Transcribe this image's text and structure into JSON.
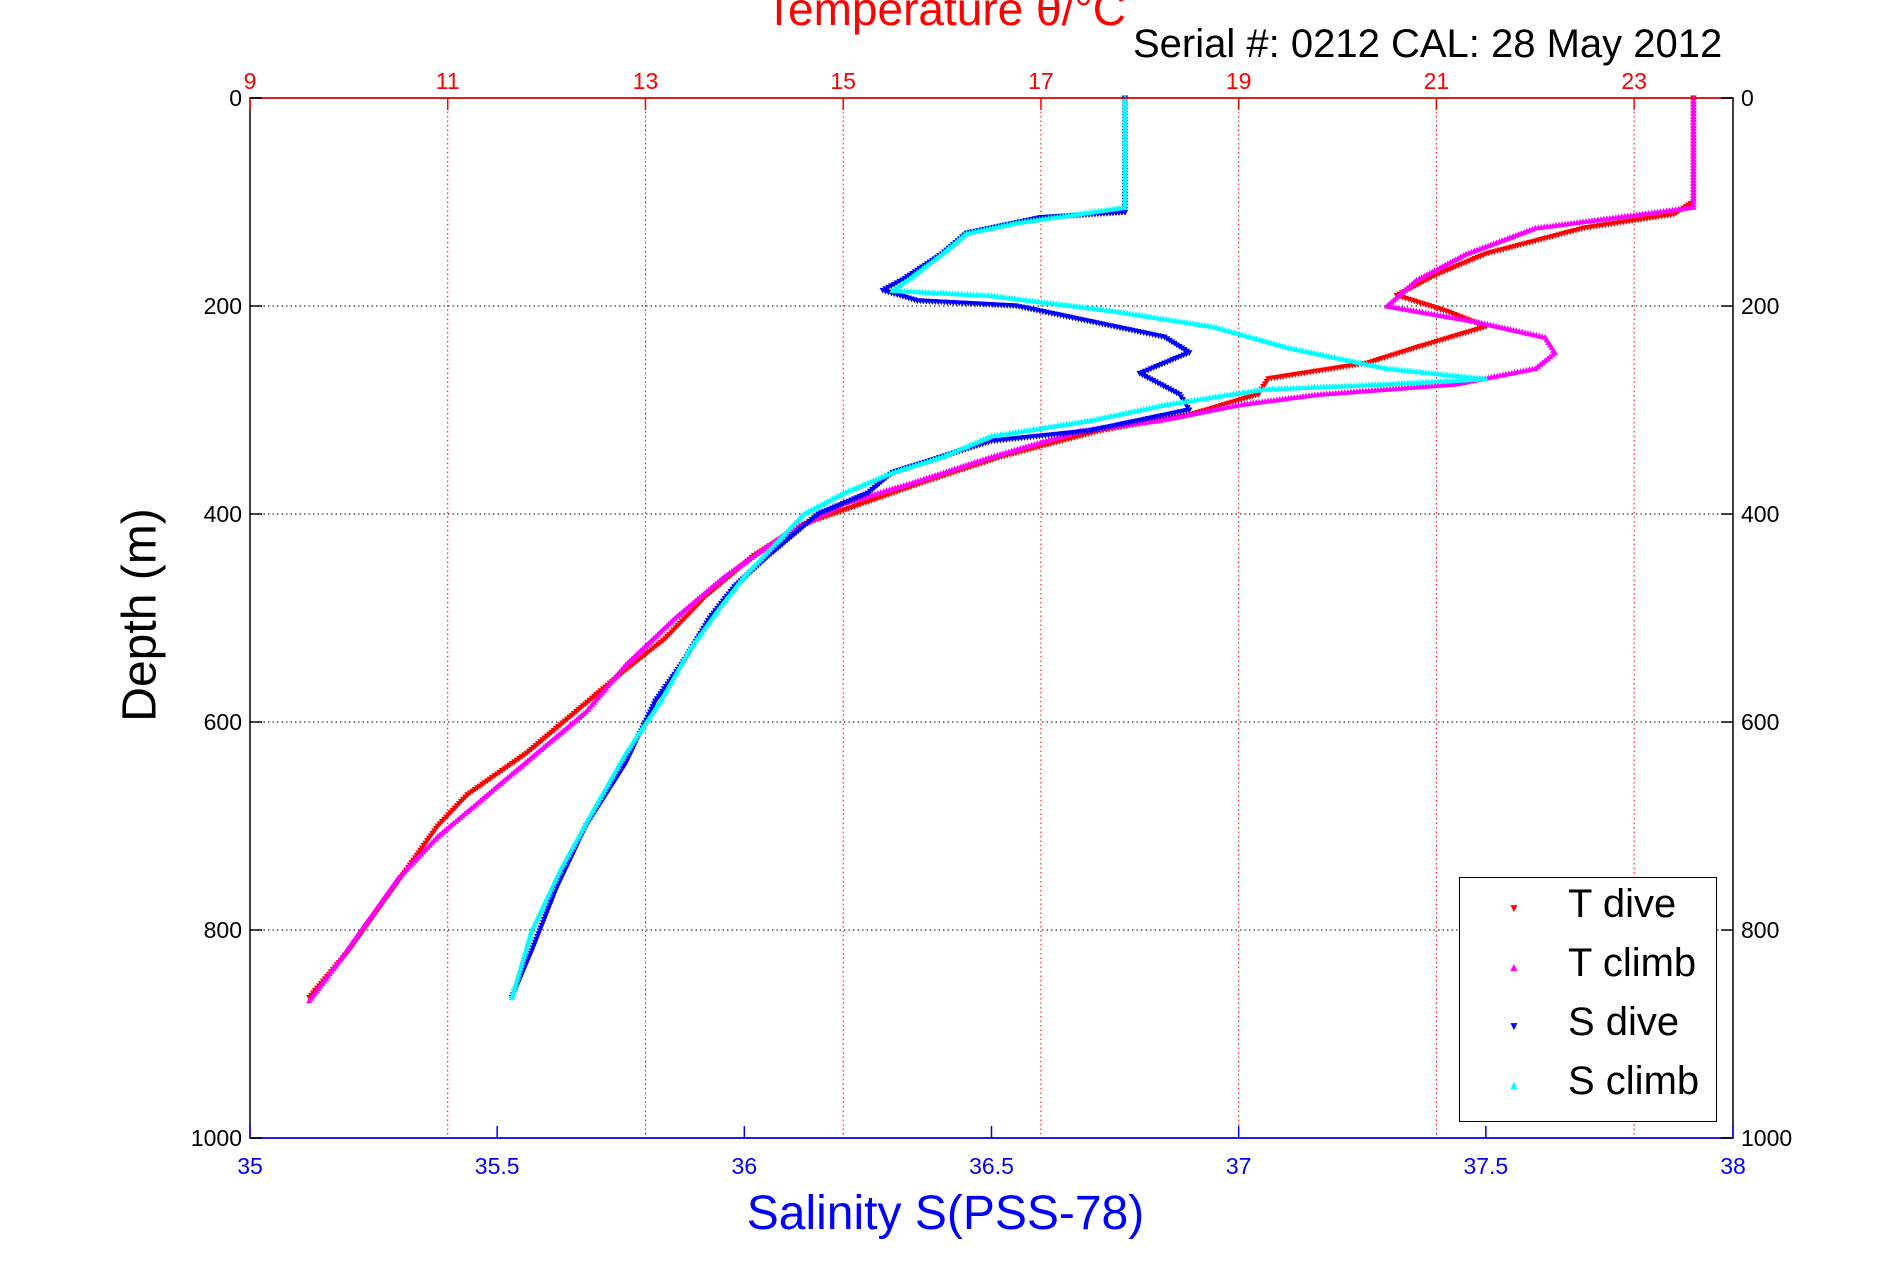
{
  "header": {
    "top_title": "Temperature θ/°C",
    "serial_text": "Serial #: 0212  CAL: 28 May 2012"
  },
  "axes": {
    "ylabel": "Depth (m)",
    "xlabel_bottom": "Salinity S(PSS-78)"
  },
  "legend": {
    "items": [
      {
        "label": "T dive",
        "color": "#ff0000",
        "marker": "▼"
      },
      {
        "label": "T climb",
        "color": "#ff00ff",
        "marker": "▲"
      },
      {
        "label": "S dive",
        "color": "#0000ff",
        "marker": "▼"
      },
      {
        "label": "S climb",
        "color": "#00ffff",
        "marker": "▲"
      }
    ]
  },
  "colors": {
    "temperature_axis": "#ff0000",
    "salinity_axis": "#0000ff",
    "depth_grid": "#000000"
  },
  "chart_data": {
    "type": "scatter",
    "title": "Temperature θ/°C",
    "subtitle": "Serial #: 0212  CAL: 28 May 2012",
    "ylabel": "Depth (m)",
    "y_reversed": true,
    "ylim": [
      0,
      1000
    ],
    "yticks": [
      0,
      200,
      400,
      600,
      800,
      1000
    ],
    "x_bottom": {
      "label": "Salinity S(PSS-78)",
      "lim": [
        35,
        38
      ],
      "ticks": [
        35,
        35.5,
        36,
        36.5,
        37,
        37.5,
        38
      ],
      "tick_labels": [
        "35",
        "35.5",
        "36",
        "36.5",
        "37",
        "37.5",
        "38"
      ]
    },
    "x_top": {
      "label": "Temperature θ/°C",
      "lim": [
        9,
        24
      ],
      "ticks": [
        9,
        11,
        13,
        15,
        17,
        19,
        21,
        23
      ],
      "tick_labels": [
        "9",
        "11",
        "13",
        "15",
        "17",
        "19",
        "21",
        "23"
      ]
    },
    "grid": true,
    "legend_position": "bottom-right",
    "series": [
      {
        "name": "T dive",
        "axis": "temperature",
        "color": "#ff0000",
        "marker": "down-triangle",
        "points": [
          [
            23.6,
            0
          ],
          [
            23.6,
            50
          ],
          [
            23.6,
            100
          ],
          [
            23.4,
            112
          ],
          [
            22.5,
            125
          ],
          [
            21.5,
            150
          ],
          [
            21.0,
            170
          ],
          [
            20.6,
            190
          ],
          [
            21.1,
            205
          ],
          [
            21.5,
            220
          ],
          [
            20.8,
            240
          ],
          [
            20.3,
            255
          ],
          [
            19.3,
            270
          ],
          [
            19.2,
            285
          ],
          [
            18.5,
            305
          ],
          [
            17.6,
            320
          ],
          [
            16.6,
            345
          ],
          [
            15.8,
            370
          ],
          [
            15.2,
            390
          ],
          [
            14.6,
            410
          ],
          [
            14.1,
            440
          ],
          [
            13.6,
            480
          ],
          [
            13.2,
            520
          ],
          [
            12.8,
            550
          ],
          [
            12.3,
            590
          ],
          [
            11.8,
            630
          ],
          [
            11.2,
            670
          ],
          [
            10.9,
            700
          ],
          [
            10.6,
            740
          ],
          [
            10.3,
            780
          ],
          [
            10.0,
            820
          ],
          [
            9.6,
            865
          ]
        ]
      },
      {
        "name": "T climb",
        "axis": "temperature",
        "color": "#ff00ff",
        "marker": "up-triangle",
        "points": [
          [
            23.6,
            0
          ],
          [
            23.6,
            50
          ],
          [
            23.6,
            105
          ],
          [
            22.0,
            125
          ],
          [
            21.3,
            150
          ],
          [
            20.8,
            175
          ],
          [
            20.5,
            200
          ],
          [
            21.4,
            215
          ],
          [
            22.1,
            230
          ],
          [
            22.2,
            245
          ],
          [
            22.0,
            260
          ],
          [
            21.2,
            275
          ],
          [
            19.8,
            285
          ],
          [
            19.0,
            295
          ],
          [
            18.2,
            310
          ],
          [
            17.4,
            320
          ],
          [
            16.5,
            345
          ],
          [
            15.7,
            370
          ],
          [
            15.0,
            390
          ],
          [
            14.4,
            420
          ],
          [
            13.8,
            460
          ],
          [
            13.3,
            500
          ],
          [
            12.8,
            545
          ],
          [
            12.4,
            590
          ],
          [
            11.9,
            630
          ],
          [
            11.4,
            670
          ],
          [
            10.9,
            710
          ],
          [
            10.5,
            750
          ],
          [
            10.2,
            790
          ],
          [
            9.9,
            830
          ],
          [
            9.6,
            868
          ]
        ]
      },
      {
        "name": "S dive",
        "axis": "salinity",
        "color": "#0000ff",
        "marker": "down-triangle",
        "points": [
          [
            36.77,
            0
          ],
          [
            36.77,
            50
          ],
          [
            36.77,
            110
          ],
          [
            36.6,
            115
          ],
          [
            36.45,
            130
          ],
          [
            36.4,
            150
          ],
          [
            36.32,
            175
          ],
          [
            36.28,
            185
          ],
          [
            36.35,
            195
          ],
          [
            36.55,
            200
          ],
          [
            36.7,
            215
          ],
          [
            36.85,
            230
          ],
          [
            36.9,
            245
          ],
          [
            36.8,
            265
          ],
          [
            36.88,
            285
          ],
          [
            36.9,
            300
          ],
          [
            36.7,
            320
          ],
          [
            36.5,
            330
          ],
          [
            36.4,
            345
          ],
          [
            36.3,
            360
          ],
          [
            36.25,
            380
          ],
          [
            36.15,
            400
          ],
          [
            36.1,
            420
          ],
          [
            36.05,
            440
          ],
          [
            35.98,
            470
          ],
          [
            35.93,
            500
          ],
          [
            35.88,
            540
          ],
          [
            35.82,
            580
          ],
          [
            35.76,
            640
          ],
          [
            35.68,
            700
          ],
          [
            35.62,
            760
          ],
          [
            35.57,
            820
          ],
          [
            35.53,
            865
          ]
        ]
      },
      {
        "name": "S climb",
        "axis": "salinity",
        "color": "#00ffff",
        "marker": "up-triangle",
        "points": [
          [
            36.77,
            0
          ],
          [
            36.77,
            50
          ],
          [
            36.77,
            105
          ],
          [
            36.55,
            120
          ],
          [
            36.45,
            130
          ],
          [
            36.4,
            150
          ],
          [
            36.33,
            175
          ],
          [
            36.3,
            185
          ],
          [
            36.5,
            190
          ],
          [
            36.75,
            205
          ],
          [
            36.95,
            220
          ],
          [
            37.1,
            240
          ],
          [
            37.3,
            260
          ],
          [
            37.5,
            270
          ],
          [
            37.3,
            275
          ],
          [
            37.05,
            280
          ],
          [
            36.85,
            295
          ],
          [
            36.7,
            310
          ],
          [
            36.5,
            325
          ],
          [
            36.4,
            345
          ],
          [
            36.3,
            360
          ],
          [
            36.2,
            380
          ],
          [
            36.12,
            400
          ],
          [
            36.06,
            430
          ],
          [
            36.0,
            460
          ],
          [
            35.95,
            490
          ],
          [
            35.89,
            530
          ],
          [
            35.83,
            580
          ],
          [
            35.76,
            630
          ],
          [
            35.7,
            680
          ],
          [
            35.63,
            740
          ],
          [
            35.57,
            800
          ],
          [
            35.53,
            865
          ]
        ]
      }
    ]
  }
}
